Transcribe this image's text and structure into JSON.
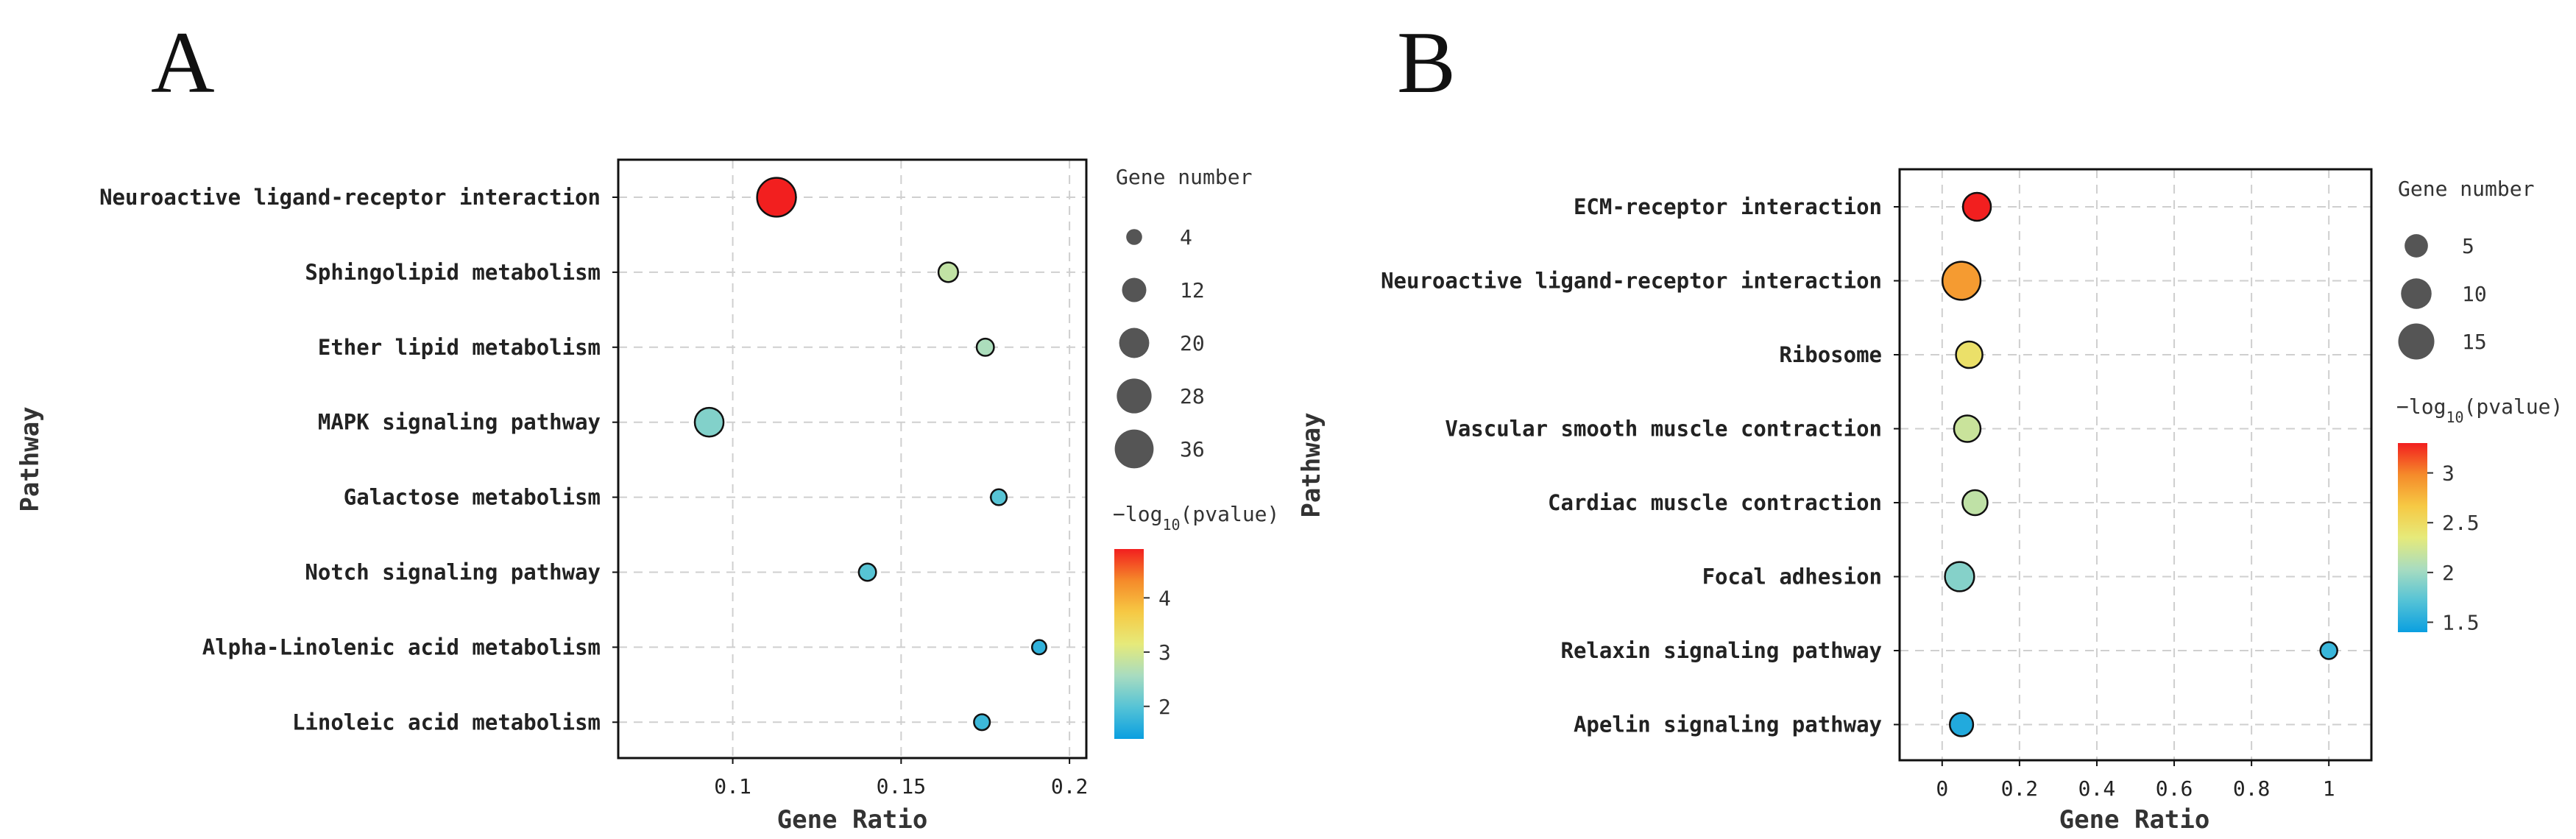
{
  "chart_data": [
    {
      "panel": "A",
      "type": "scatter",
      "title": "",
      "xlabel": "Gene Ratio",
      "ylabel": "Pathway",
      "xlim": [
        0.066,
        0.205
      ],
      "xticks": [
        0.1,
        0.15,
        0.2
      ],
      "xtick_labels": [
        "0.1",
        "0.15",
        "0.2"
      ],
      "categories": [
        "Neuroactive ligand-receptor interaction",
        "Sphingolipid metabolism",
        "Ether lipid metabolism",
        "MAPK signaling pathway",
        "Galactose metabolism",
        "Notch signaling pathway",
        "Alpha-Linolenic acid metabolism",
        "Linoleic acid metabolism"
      ],
      "points": [
        {
          "pathway": "Neuroactive ligand-receptor interaction",
          "gene_ratio": 0.113,
          "gene_number": 36,
          "neg_log10_p": 4.9
        },
        {
          "pathway": "Sphingolipid metabolism",
          "gene_ratio": 0.164,
          "gene_number": 7,
          "neg_log10_p": 2.8
        },
        {
          "pathway": "Ether lipid metabolism",
          "gene_ratio": 0.175,
          "gene_number": 5,
          "neg_log10_p": 2.6
        },
        {
          "pathway": "MAPK signaling pathway",
          "gene_ratio": 0.093,
          "gene_number": 18,
          "neg_log10_p": 2.3
        },
        {
          "pathway": "Galactose metabolism",
          "gene_ratio": 0.179,
          "gene_number": 4,
          "neg_log10_p": 2.0
        },
        {
          "pathway": "Notch signaling pathway",
          "gene_ratio": 0.14,
          "gene_number": 5,
          "neg_log10_p": 2.0
        },
        {
          "pathway": "Alpha-Linolenic acid metabolism",
          "gene_ratio": 0.191,
          "gene_number": 3,
          "neg_log10_p": 1.7
        },
        {
          "pathway": "Linoleic acid metabolism",
          "gene_ratio": 0.174,
          "gene_number": 4,
          "neg_log10_p": 1.8
        }
      ],
      "size_legend": {
        "title": "Gene number",
        "values": [
          4,
          12,
          20,
          28,
          36
        ]
      },
      "color_legend": {
        "title_main": "−log",
        "title_sub": "10",
        "title_tail": "(pvalue)",
        "min": 1.4,
        "max": 4.9,
        "ticks": [
          2,
          3,
          4
        ],
        "tick_labels": [
          "2",
          "3",
          "4"
        ]
      }
    },
    {
      "panel": "B",
      "type": "scatter",
      "title": "",
      "xlabel": "Gene Ratio",
      "ylabel": "Pathway",
      "xlim": [
        -0.11,
        1.11
      ],
      "xticks": [
        0,
        0.2,
        0.4,
        0.6,
        0.8,
        1
      ],
      "xtick_labels": [
        "0",
        "0.2",
        "0.4",
        "0.6",
        "0.8",
        "1"
      ],
      "categories": [
        "ECM-receptor interaction",
        "Neuroactive ligand-receptor interaction",
        "Ribosome",
        "Vascular smooth muscle contraction",
        "Cardiac muscle contraction",
        "Focal adhesion",
        "Relaxin signaling pathway",
        "Apelin signaling pathway"
      ],
      "points": [
        {
          "pathway": "ECM-receptor interaction",
          "gene_ratio": 0.09,
          "gene_number": 8,
          "neg_log10_p": 3.3
        },
        {
          "pathway": "Neuroactive ligand-receptor interaction",
          "gene_ratio": 0.05,
          "gene_number": 17,
          "neg_log10_p": 2.9
        },
        {
          "pathway": "Ribosome",
          "gene_ratio": 0.07,
          "gene_number": 7,
          "neg_log10_p": 2.45
        },
        {
          "pathway": "Vascular smooth muscle contraction",
          "gene_ratio": 0.065,
          "gene_number": 7,
          "neg_log10_p": 2.2
        },
        {
          "pathway": "Cardiac muscle contraction",
          "gene_ratio": 0.085,
          "gene_number": 6,
          "neg_log10_p": 2.15
        },
        {
          "pathway": "Focal adhesion",
          "gene_ratio": 0.045,
          "gene_number": 9,
          "neg_log10_p": 1.9
        },
        {
          "pathway": "Relaxin signaling pathway",
          "gene_ratio": 1.0,
          "gene_number": 2,
          "neg_log10_p": 1.6
        },
        {
          "pathway": "Apelin signaling pathway",
          "gene_ratio": 0.05,
          "gene_number": 5,
          "neg_log10_p": 1.5
        }
      ],
      "size_legend": {
        "title": "Gene number",
        "values": [
          5,
          10,
          15
        ]
      },
      "color_legend": {
        "title_main": "−log",
        "title_sub": "10",
        "title_tail": "(pvalue)",
        "min": 1.4,
        "max": 3.3,
        "ticks": [
          1.5,
          2,
          2.5,
          3
        ],
        "tick_labels": [
          "1.5",
          "2",
          "2.5",
          "3"
        ]
      }
    }
  ],
  "colors": {
    "scale": [
      "#0a9fe0",
      "#55c3d6",
      "#a8dcc0",
      "#e6ea7a",
      "#f6c944",
      "#f58a2a",
      "#f21f1f"
    ],
    "frame": "#111111",
    "grid": "#cfcfcf",
    "legend_dot": "#555555"
  }
}
